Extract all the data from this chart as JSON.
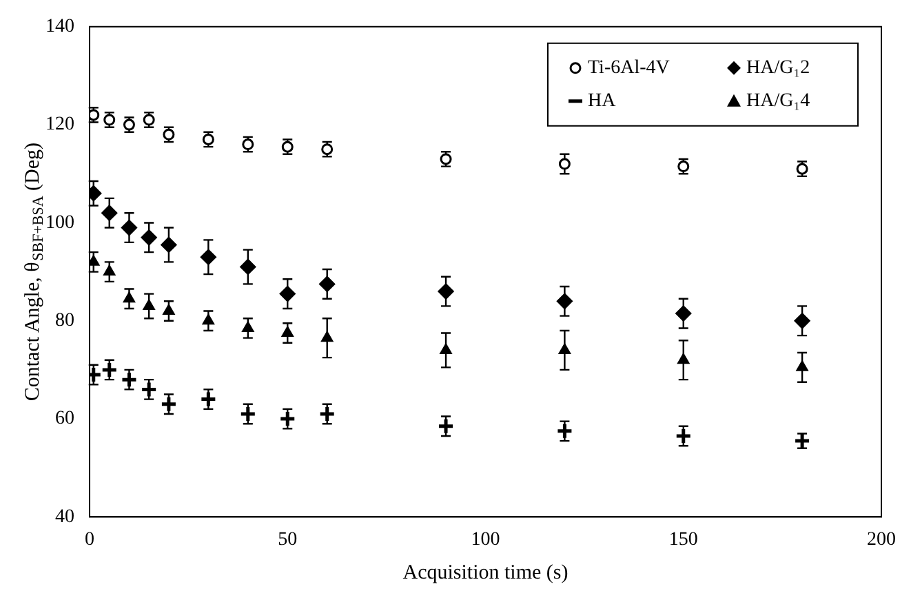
{
  "chart_data": {
    "type": "scatter",
    "xlabel": "Acquisition time (s)",
    "ylabel": "Contact Angle, θ$_{SBF+BSA}$ (Deg)",
    "x": [
      1,
      5,
      10,
      15,
      20,
      30,
      40,
      50,
      60,
      90,
      120,
      150,
      180
    ],
    "series": [
      {
        "name": "Ti-6Al-4V",
        "color": "#000000",
        "marker": "circle",
        "values": [
          122,
          121,
          120,
          121,
          118,
          117,
          116,
          115.5,
          115,
          113,
          112,
          111.5,
          111
        ],
        "errors": [
          1.5,
          1.5,
          1.5,
          1.5,
          1.5,
          1.5,
          1.5,
          1.5,
          1.5,
          1.5,
          2,
          1.5,
          1.5
        ]
      },
      {
        "name": "HA/G₁2",
        "color": "#000000",
        "marker": "diamond",
        "values": [
          106,
          102,
          99,
          97,
          95.5,
          93,
          91,
          85.5,
          87.5,
          86,
          84,
          81.5,
          80
        ],
        "errors": [
          2.5,
          3,
          3,
          3,
          3.5,
          3.5,
          3.5,
          3,
          3,
          3,
          3,
          3,
          3
        ]
      },
      {
        "name": "HA",
        "color": "#000000",
        "marker": "cross",
        "values": [
          69,
          70,
          68,
          66,
          63,
          64,
          61,
          60,
          61,
          58.5,
          57.5,
          56.5,
          55.5
        ],
        "errors": [
          2,
          2,
          2,
          2,
          2,
          2,
          2,
          2,
          2,
          2,
          2,
          2,
          1.5
        ]
      },
      {
        "name": "HA/G₁4",
        "color": "#000000",
        "marker": "triangle",
        "values": [
          92,
          90,
          84.5,
          83,
          82,
          80,
          78.5,
          77.5,
          76.5,
          74,
          74,
          72,
          70.5
        ],
        "errors": [
          2,
          2,
          2,
          2.5,
          2,
          2,
          2,
          2,
          4,
          3.5,
          4,
          4,
          3
        ]
      }
    ],
    "xlim": [
      0,
      200
    ],
    "xticks": [
      0,
      50,
      100,
      150,
      200
    ],
    "ylim": [
      40,
      140
    ],
    "yticks": [
      40,
      60,
      80,
      100,
      120,
      140
    ],
    "grid": false,
    "legend": "top right"
  }
}
